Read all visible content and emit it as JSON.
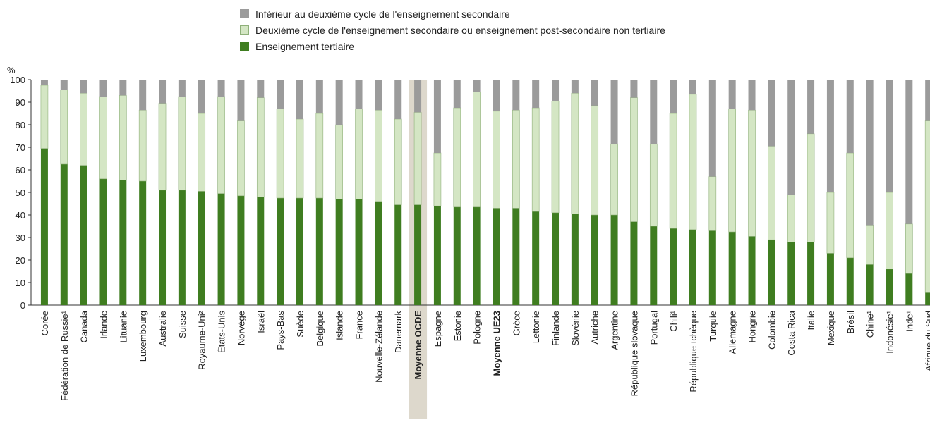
{
  "chart_data": {
    "type": "bar",
    "stacked": true,
    "ylabel": "%",
    "ylim": [
      0,
      100
    ],
    "yticks": [
      0,
      10,
      20,
      30,
      40,
      50,
      60,
      70,
      80,
      90,
      100
    ],
    "grid": false,
    "legend_position": "top",
    "categories": [
      "Corée",
      "Fédération de Russie¹",
      "Canada",
      "Irlande",
      "Lituanie",
      "Luxembourg",
      "Australie",
      "Suisse",
      "Royaume-Uni²",
      "États-Unis",
      "Norvège",
      "Israël",
      "Pays-Bas",
      "Suède",
      "Belgique",
      "Islande",
      "France",
      "Nouvelle-Zélande",
      "Danemark",
      "Moyenne OCDE",
      "Espagne",
      "Estonie",
      "Pologne",
      "Moyenne  UE23",
      "Grèce",
      "Lettonie",
      "Finlande",
      "Slovénie",
      "Autriche",
      "Argentine",
      "République slovaque",
      "Portugal",
      "Chili¹",
      "République tchèque",
      "Turquie",
      "Allemagne",
      "Hongrie",
      "Colombie",
      "Costa Rica",
      "Italie",
      "Mexique",
      "Brésil",
      "Chine¹",
      "Indonésie¹",
      "Inde¹",
      "Afrique du Sud"
    ],
    "bold_categories": [
      "Moyenne OCDE",
      "Moyenne  UE23"
    ],
    "highlight_category": "Moyenne OCDE",
    "series": [
      {
        "name": "Enseignement tertiaire",
        "color": "#3f7d20",
        "values": [
          69.5,
          62.5,
          62,
          56,
          55.5,
          55,
          51,
          51,
          50.5,
          49.5,
          48.5,
          48,
          47.5,
          47.5,
          47.5,
          47,
          47,
          46,
          44.5,
          44.5,
          44,
          43.5,
          43.5,
          43,
          43,
          41.5,
          41,
          40.5,
          40,
          40,
          37,
          35,
          34,
          33.5,
          33,
          32.5,
          30.5,
          29,
          28,
          28,
          23,
          21,
          18,
          16,
          14,
          5.5
        ]
      },
      {
        "name": "Deuxième cycle de l'enseignement secondaire ou enseignement post-secondaire non tertiaire",
        "color": "#d4e6c4",
        "values": [
          28,
          33,
          32,
          36.5,
          37.5,
          31.5,
          38.5,
          41.5,
          34.5,
          43,
          33.5,
          44,
          39.5,
          35,
          37.5,
          33,
          40,
          40.5,
          38,
          41,
          23.5,
          44,
          51,
          43,
          43.5,
          46,
          49.5,
          53.5,
          48.5,
          31.5,
          55,
          36.5,
          51,
          60,
          24,
          54.5,
          56,
          41.5,
          21,
          48,
          27,
          46.5,
          17.5,
          34,
          22,
          76.5
        ]
      },
      {
        "name": "Inférieur au deuxième cycle de l'enseignement secondaire",
        "color": "#9b9b9b",
        "values": [
          2.5,
          4.5,
          6,
          7.5,
          7,
          13.5,
          10.5,
          7.5,
          15,
          7.5,
          18,
          8,
          13,
          17.5,
          15,
          20,
          13,
          13.5,
          17.5,
          14.5,
          32.5,
          12.5,
          5.5,
          14,
          13.5,
          12.5,
          9.5,
          6,
          11.5,
          28.5,
          8,
          28.5,
          15,
          6.5,
          43,
          13,
          13.5,
          29.5,
          51,
          24,
          50,
          32.5,
          64.5,
          50,
          64,
          18
        ]
      }
    ]
  }
}
